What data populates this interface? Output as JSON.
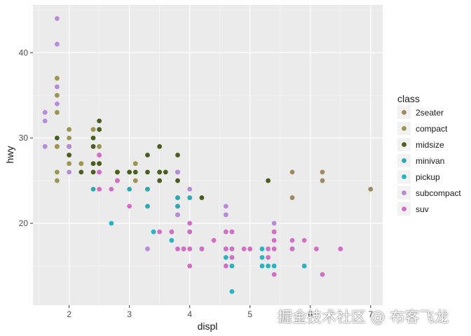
{
  "chart_data": {
    "type": "scatter",
    "xlabel": "displ",
    "ylabel": "hwy",
    "xlim": [
      1.4,
      7.2
    ],
    "ylim": [
      10.4,
      45.6
    ],
    "x_ticks": [
      2,
      3,
      4,
      5,
      6,
      7
    ],
    "y_ticks": [
      20,
      30,
      40
    ],
    "grid": true,
    "legend": {
      "title": "class",
      "position": "right"
    },
    "series": [
      {
        "name": "2seater",
        "color": "#a08860",
        "points": [
          [
            5.7,
            26
          ],
          [
            5.7,
            23
          ],
          [
            6.2,
            26
          ],
          [
            6.2,
            25
          ],
          [
            7.0,
            24
          ]
        ]
      },
      {
        "name": "compact",
        "color": "#9c9450",
        "points": [
          [
            1.8,
            29
          ],
          [
            1.8,
            29
          ],
          [
            2.0,
            31
          ],
          [
            2.0,
            30
          ],
          [
            2.8,
            26
          ],
          [
            2.8,
            26
          ],
          [
            3.1,
            27
          ],
          [
            1.8,
            26
          ],
          [
            1.8,
            25
          ],
          [
            2.0,
            28
          ],
          [
            2.0,
            27
          ],
          [
            2.8,
            25
          ],
          [
            3.1,
            25
          ],
          [
            2.2,
            27
          ],
          [
            2.4,
            31
          ],
          [
            3.0,
            26
          ],
          [
            1.8,
            37
          ],
          [
            1.8,
            35
          ],
          [
            1.8,
            33
          ],
          [
            2.0,
            29
          ],
          [
            2.8,
            26
          ],
          [
            2.5,
            27
          ],
          [
            2.5,
            29
          ],
          [
            2.4,
            31
          ]
        ]
      },
      {
        "name": "midsize",
        "color": "#4a5e20",
        "points": [
          [
            2.5,
            32
          ],
          [
            2.5,
            31
          ],
          [
            2.4,
            30
          ],
          [
            2.4,
            29
          ],
          [
            2.0,
            28
          ],
          [
            2.2,
            26
          ],
          [
            3.3,
            28
          ],
          [
            3.5,
            29
          ],
          [
            3.5,
            26
          ],
          [
            3.8,
            26
          ],
          [
            3.8,
            28
          ],
          [
            3.3,
            26
          ],
          [
            3.5,
            25
          ],
          [
            3.8,
            25
          ],
          [
            4.2,
            23
          ],
          [
            2.4,
            27
          ],
          [
            3.0,
            26
          ],
          [
            3.5,
            26
          ],
          [
            2.0,
            29
          ],
          [
            2.5,
            27
          ],
          [
            1.8,
            30
          ],
          [
            3.1,
            26
          ],
          [
            5.3,
            25
          ],
          [
            3.6,
            26
          ],
          [
            2.8,
            26
          ],
          [
            2.4,
            26
          ]
        ]
      },
      {
        "name": "minivan",
        "color": "#2fa8b2",
        "points": [
          [
            2.4,
            24
          ],
          [
            3.0,
            24
          ],
          [
            3.3,
            22
          ],
          [
            3.3,
            24
          ],
          [
            3.8,
            22
          ],
          [
            3.8,
            21
          ],
          [
            3.8,
            23
          ],
          [
            3.8,
            22
          ],
          [
            3.3,
            24
          ],
          [
            4.0,
            23
          ],
          [
            3.8,
            23
          ]
        ]
      },
      {
        "name": "pickup",
        "color": "#26b4c0",
        "points": [
          [
            2.7,
            20
          ],
          [
            3.4,
            19
          ],
          [
            3.7,
            18
          ],
          [
            4.0,
            19
          ],
          [
            4.2,
            17
          ],
          [
            4.7,
            17
          ],
          [
            4.7,
            16
          ],
          [
            5.2,
            17
          ],
          [
            5.2,
            15
          ],
          [
            5.7,
            17
          ],
          [
            5.9,
            15
          ],
          [
            4.7,
            15
          ],
          [
            5.2,
            16
          ],
          [
            5.3,
            15
          ],
          [
            5.4,
            15
          ],
          [
            4.6,
            16
          ],
          [
            4.6,
            17
          ],
          [
            3.9,
            17
          ],
          [
            4.7,
            12
          ]
        ]
      },
      {
        "name": "subcompact",
        "color": "#b88ad8",
        "points": [
          [
            1.6,
            33
          ],
          [
            1.6,
            32
          ],
          [
            1.6,
            29
          ],
          [
            1.8,
            41
          ],
          [
            1.8,
            44
          ],
          [
            1.8,
            36
          ],
          [
            1.8,
            34
          ],
          [
            2.0,
            26
          ],
          [
            2.5,
            28
          ],
          [
            2.5,
            26
          ],
          [
            2.0,
            29
          ],
          [
            3.8,
            26
          ],
          [
            4.0,
            24
          ],
          [
            4.6,
            21
          ],
          [
            4.6,
            22
          ],
          [
            5.4,
            20
          ],
          [
            5.4,
            19
          ],
          [
            3.3,
            17
          ],
          [
            3.8,
            21
          ]
        ]
      },
      {
        "name": "suv",
        "color": "#d26ec6",
        "points": [
          [
            2.5,
            26
          ],
          [
            2.5,
            24
          ],
          [
            2.7,
            24
          ],
          [
            3.0,
            22
          ],
          [
            3.7,
            19
          ],
          [
            3.9,
            17
          ],
          [
            4.0,
            17
          ],
          [
            4.2,
            17
          ],
          [
            4.4,
            18
          ],
          [
            4.6,
            19
          ],
          [
            4.7,
            19
          ],
          [
            4.7,
            17
          ],
          [
            4.9,
            17
          ],
          [
            5.3,
            17
          ],
          [
            5.4,
            17
          ],
          [
            5.7,
            18
          ],
          [
            5.9,
            18
          ],
          [
            6.1,
            17
          ],
          [
            6.5,
            17
          ],
          [
            6.2,
            14
          ],
          [
            5.4,
            14
          ],
          [
            5.4,
            18
          ],
          [
            5.7,
            17
          ],
          [
            5.0,
            17
          ],
          [
            4.0,
            15
          ],
          [
            4.6,
            17
          ],
          [
            4.0,
            19
          ],
          [
            4.0,
            20
          ],
          [
            3.5,
            19
          ],
          [
            3.8,
            17
          ],
          [
            4.7,
            16
          ],
          [
            4.6,
            15
          ],
          [
            5.4,
            19
          ],
          [
            5.3,
            16
          ],
          [
            2.8,
            25
          ],
          [
            2.5,
            28
          ]
        ]
      }
    ]
  },
  "watermark": "掘金技术社区 @ 布客飞龙"
}
